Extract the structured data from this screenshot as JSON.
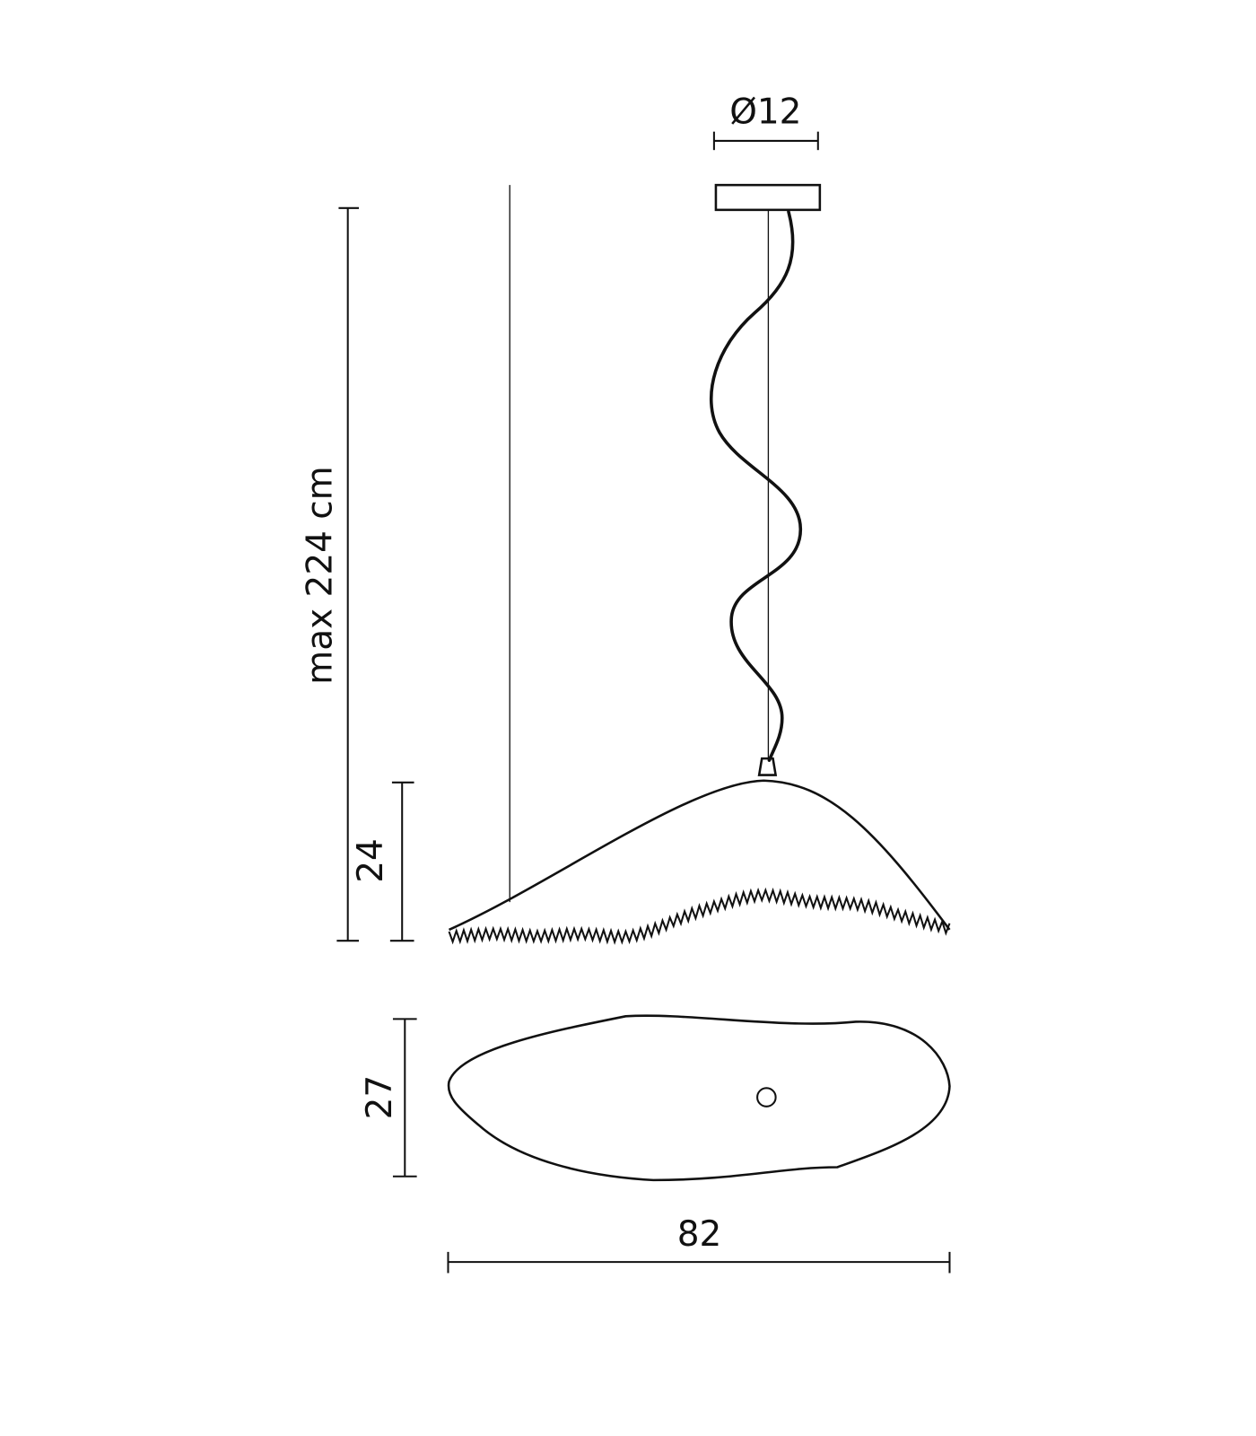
{
  "dimensions": {
    "canopy_diameter": "Ø12",
    "max_height": "max 224 cm",
    "shade_height": "24",
    "shade_depth": "27",
    "shade_width": "82"
  }
}
